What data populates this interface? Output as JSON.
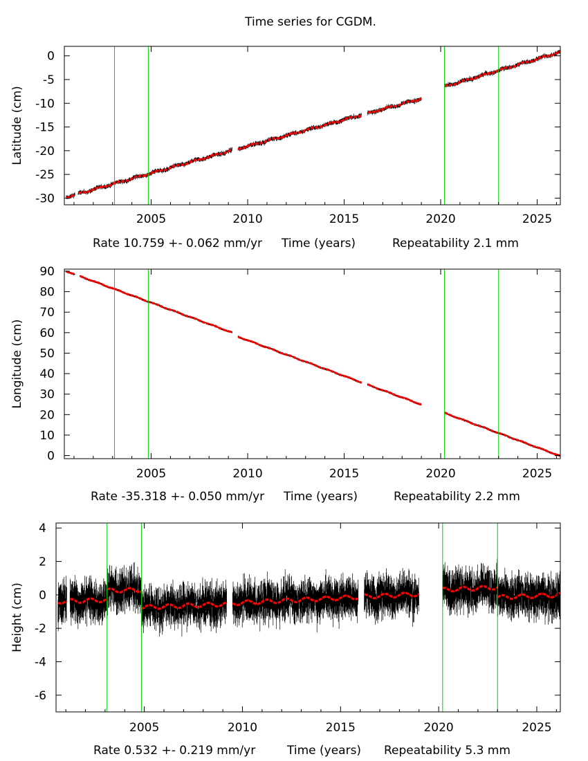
{
  "title": "Time series for CGDM.",
  "colors": {
    "data": "#000000",
    "model": "#ff0000",
    "offset": "#00cc00",
    "frame": "#000000"
  },
  "chart_data": [
    {
      "type": "scatter",
      "component": "Latitude",
      "ylabel": "Latitude (cm)",
      "xlabel": "Time (years)",
      "rate_text": "Rate 10.759 +- 0.062 mm/yr",
      "repeatability_text": "Repeatability 2.1 mm",
      "xlim": [
        2000.5,
        2026.2
      ],
      "ylim": [
        -31.4,
        2.0
      ],
      "xticks": [
        2005,
        2010,
        2015,
        2020,
        2025
      ],
      "yticks": [
        0,
        -5,
        -10,
        -15,
        -20,
        -25,
        -30
      ],
      "offsets": [
        2003.1,
        2004.85,
        2020.2,
        2023.0
      ],
      "gaps": [
        [
          2001.05,
          2001.2
        ],
        [
          2009.2,
          2009.5
        ],
        [
          2015.9,
          2016.2
        ],
        [
          2019.0,
          2020.2
        ]
      ],
      "segments": [
        {
          "x": [
            2000.6,
            2009.2
          ],
          "y": [
            -29.8,
            -19.9
          ]
        },
        {
          "x": [
            2009.5,
            2019.0
          ],
          "y": [
            -19.6,
            -9.0
          ]
        },
        {
          "x": [
            2020.2,
            2026.2
          ],
          "y": [
            -6.5,
            0.8
          ]
        }
      ],
      "scatter_cm": 0.5
    },
    {
      "type": "scatter",
      "component": "Longitude",
      "ylabel": "Longitude (cm)",
      "xlabel": "Time (years)",
      "rate_text": "Rate -35.318 +- 0.050 mm/yr",
      "repeatability_text": "Repeatability 2.2 mm",
      "xlim": [
        2000.5,
        2026.2
      ],
      "ylim": [
        -1.5,
        91.0
      ],
      "xticks": [
        2005,
        2010,
        2015,
        2020,
        2025
      ],
      "yticks": [
        90,
        80,
        70,
        60,
        50,
        40,
        30,
        20,
        10,
        0
      ],
      "offsets": [
        2003.1,
        2004.85,
        2020.2,
        2023.0
      ],
      "gaps": [
        [
          2001.05,
          2001.3
        ],
        [
          2009.2,
          2009.5
        ],
        [
          2015.9,
          2016.2
        ],
        [
          2019.0,
          2020.2
        ]
      ],
      "segments": [
        {
          "x": [
            2000.6,
            2009.2
          ],
          "y": [
            90.0,
            60.0
          ]
        },
        {
          "x": [
            2009.5,
            2019.0
          ],
          "y": [
            58.0,
            24.9
          ]
        },
        {
          "x": [
            2020.2,
            2026.2
          ],
          "y": [
            20.8,
            -0.2
          ]
        }
      ],
      "scatter_cm": 0.5
    },
    {
      "type": "scatter",
      "component": "Height",
      "ylabel": "Height (cm)",
      "xlabel": "Time (years)",
      "rate_text": "Rate 0.532 +- 0.219 mm/yr",
      "repeatability_text": "Repeatability 5.3 mm",
      "xlim": [
        2000.5,
        2026.2
      ],
      "ylim": [
        -7.0,
        4.3
      ],
      "xticks": [
        2005,
        2010,
        2015,
        2020,
        2025
      ],
      "yticks": [
        4,
        2,
        0,
        -2,
        -4,
        -6
      ],
      "offsets": [
        2003.1,
        2004.85,
        2020.2,
        2023.0
      ],
      "gaps": [
        [
          2001.05,
          2001.2
        ],
        [
          2009.2,
          2009.5
        ],
        [
          2015.9,
          2016.2
        ],
        [
          2019.0,
          2020.2
        ]
      ],
      "segments": [
        {
          "x": [
            2000.6,
            2003.1
          ],
          "y": [
            -0.4,
            -0.3
          ]
        },
        {
          "x": [
            2003.1,
            2004.85
          ],
          "y": [
            0.25,
            0.3
          ]
        },
        {
          "x": [
            2004.85,
            2009.2
          ],
          "y": [
            -0.75,
            -0.55
          ]
        },
        {
          "x": [
            2009.5,
            2019.0
          ],
          "y": [
            -0.5,
            0.05
          ]
        },
        {
          "x": [
            2020.2,
            2023.0
          ],
          "y": [
            0.3,
            0.45
          ]
        },
        {
          "x": [
            2023.0,
            2026.2
          ],
          "y": [
            -0.15,
            0.0
          ]
        }
      ],
      "scatter_cm": 1.3
    }
  ]
}
